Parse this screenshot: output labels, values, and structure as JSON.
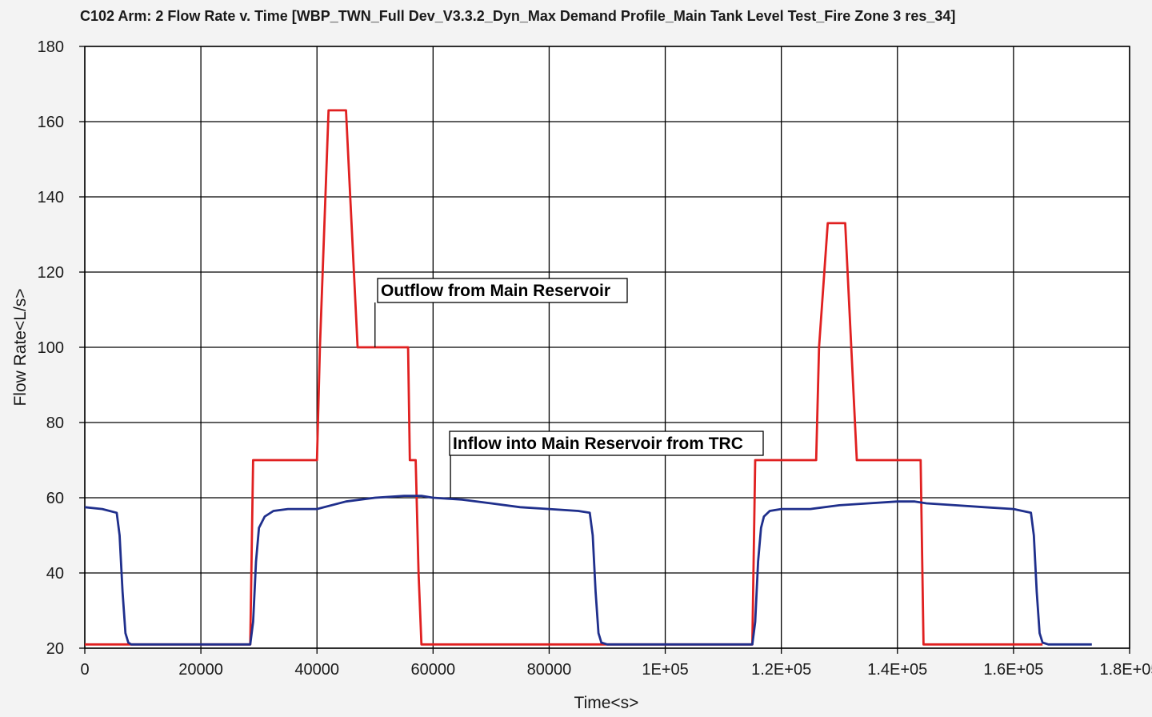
{
  "chart_data": {
    "type": "line",
    "title": "C102 Arm: 2 Flow Rate v. Time [WBP_TWN_Full Dev_V3.3.2_Dyn_Max Demand Profile_Main Tank Level Test_Fire Zone 3 res_34]",
    "xlabel": "Time<s>",
    "ylabel": "Flow Rate<L/s>",
    "xlim": [
      0,
      180000
    ],
    "ylim": [
      20,
      180
    ],
    "x_ticks": [
      {
        "value": 0,
        "label": "0"
      },
      {
        "value": 20000,
        "label": "20000"
      },
      {
        "value": 40000,
        "label": "40000"
      },
      {
        "value": 60000,
        "label": "60000"
      },
      {
        "value": 80000,
        "label": "80000"
      },
      {
        "value": 100000,
        "label": "1E+05"
      },
      {
        "value": 120000,
        "label": "1.2E+05"
      },
      {
        "value": 140000,
        "label": "1.4E+05"
      },
      {
        "value": 160000,
        "label": "1.6E+05"
      },
      {
        "value": 180000,
        "label": "1.8E+05"
      }
    ],
    "y_ticks": [
      {
        "value": 20,
        "label": "20"
      },
      {
        "value": 40,
        "label": "40"
      },
      {
        "value": 60,
        "label": "60"
      },
      {
        "value": 80,
        "label": "80"
      },
      {
        "value": 100,
        "label": "100"
      },
      {
        "value": 120,
        "label": "120"
      },
      {
        "value": 140,
        "label": "140"
      },
      {
        "value": 160,
        "label": "160"
      },
      {
        "value": 180,
        "label": "180"
      }
    ],
    "grid": true,
    "legend": "none",
    "series": [
      {
        "name": "Outflow from Main Reservoir",
        "color": "#e02020",
        "x": [
          0,
          28500,
          29000,
          40000,
          40500,
          42000,
          43500,
          45000,
          47000,
          52000,
          55700,
          56000,
          57000,
          57500,
          58000,
          89000,
          115000,
          115500,
          126000,
          126500,
          128000,
          129500,
          131000,
          133000,
          144000,
          144500,
          165000
        ],
        "y": [
          21,
          21,
          70,
          70,
          100,
          163,
          163,
          163,
          100,
          100,
          100,
          70,
          70,
          40,
          21,
          21,
          21,
          70,
          70,
          100,
          133,
          133,
          133,
          70,
          70,
          21,
          21
        ]
      },
      {
        "name": "Inflow into Main Reservoir from TRC",
        "color": "#1f2f8c",
        "x": [
          0,
          3000,
          5500,
          6000,
          6500,
          7000,
          7500,
          8000,
          20000,
          28000,
          28500,
          29000,
          29500,
          30000,
          31000,
          32500,
          35000,
          40000,
          45000,
          50000,
          55000,
          58000,
          60000,
          65000,
          70000,
          75000,
          80000,
          85000,
          87000,
          87500,
          88000,
          88500,
          89000,
          90000,
          100000,
          110000,
          115000,
          115500,
          116000,
          116500,
          117000,
          118000,
          120000,
          125000,
          130000,
          135000,
          140000,
          143000,
          145000,
          150000,
          155000,
          160000,
          163000,
          163500,
          164000,
          164500,
          165000,
          166000,
          170000,
          173500
        ],
        "y": [
          57.5,
          57,
          56,
          50,
          35,
          24,
          21.5,
          21,
          21,
          21,
          21,
          27,
          43,
          52,
          55,
          56.5,
          57,
          57,
          59,
          60,
          60.5,
          60.5,
          60,
          59.5,
          58.5,
          57.5,
          57,
          56.5,
          56,
          50,
          35,
          24,
          21.5,
          21,
          21,
          21,
          21,
          27,
          43,
          52,
          55,
          56.5,
          57,
          57,
          58,
          58.5,
          59,
          59,
          58.5,
          58,
          57.5,
          57,
          56,
          50,
          35,
          24,
          21.5,
          21,
          21,
          21
        ]
      }
    ],
    "annotations": [
      {
        "text": "Outflow from Main Reservoir",
        "anchor_x": 50000,
        "anchor_y": 100
      },
      {
        "text": "Inflow into Main Reservoir from TRC",
        "anchor_x": 63000,
        "anchor_y": 60
      }
    ]
  }
}
